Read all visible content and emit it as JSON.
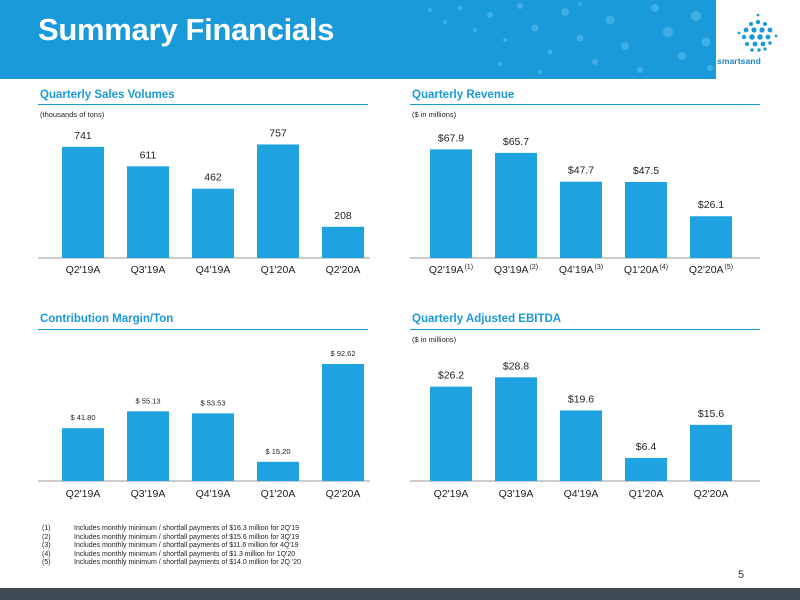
{
  "title": "Summary Financials",
  "logo": {
    "text": "smartsand"
  },
  "colors": {
    "accent": "#1a9ad9",
    "bar": "#1ea3e0"
  },
  "chart_data": [
    {
      "id": "sales",
      "type": "bar",
      "title": "Quarterly Sales Volumes",
      "unit_label": "(thousands of tons)",
      "categories": [
        "Q2'19A",
        "Q3'19A",
        "Q4'19A",
        "Q1'20A",
        "Q2'20A"
      ],
      "category_sup": [
        "",
        "",
        "",
        "",
        ""
      ],
      "values": [
        741,
        611,
        462,
        757,
        208
      ],
      "labels": [
        "741",
        "611",
        "462",
        "757",
        "208"
      ]
    },
    {
      "id": "revenue",
      "type": "bar",
      "title": "Quarterly Revenue",
      "unit_label": "($ in millions)",
      "categories": [
        "Q2'19A",
        "Q3'19A",
        "Q4'19A",
        "Q1'20A",
        "Q2'20A"
      ],
      "category_sup": [
        "(1)",
        "(2)",
        "(3)",
        "(4)",
        "(5)"
      ],
      "values": [
        67.9,
        65.7,
        47.7,
        47.5,
        26.1
      ],
      "labels": [
        "$67.9",
        "$65.7",
        "$47.7",
        "$47.5",
        "$26.1"
      ]
    },
    {
      "id": "margin",
      "type": "bar",
      "title": "Contribution Margin/Ton",
      "unit_label": "",
      "categories": [
        "Q2'19A",
        "Q3'19A",
        "Q4'19A",
        "Q1'20A",
        "Q2'20A"
      ],
      "category_sup": [
        "",
        "",
        "",
        "",
        ""
      ],
      "values": [
        41.8,
        55.13,
        53.53,
        15.2,
        92.62
      ],
      "labels": [
        "$ 41.80",
        "$ 55.13",
        "$ 53.53",
        "$ 15.20",
        "$ 92.62"
      ]
    },
    {
      "id": "ebitda",
      "type": "bar",
      "title": "Quarterly Adjusted EBITDA",
      "unit_label": "($ in millions)",
      "categories": [
        "Q2'19A",
        "Q3'19A",
        "Q4'19A",
        "Q1'20A",
        "Q2'20A"
      ],
      "category_sup": [
        "",
        "",
        "",
        "",
        ""
      ],
      "values": [
        26.2,
        28.8,
        19.6,
        6.4,
        15.6
      ],
      "labels": [
        "$26.2",
        "$28.8",
        "$19.6",
        "$6.4",
        "$15.6"
      ]
    }
  ],
  "footnotes": [
    {
      "num": "(1)",
      "text": "Includes monthly minimum / shortfall payments of $16.3 million for 2Q'19"
    },
    {
      "num": "(2)",
      "text": "Includes monthly minimum / shortfall payments of $15.6 million for 3Q'19"
    },
    {
      "num": "(3)",
      "text": "Includes monthly minimum / shortfall payments of $11.6 million for 4Q'19"
    },
    {
      "num": "(4)",
      "text": "Includes monthly minimum / shortfall payments of $1.3  million for 1Q'20"
    },
    {
      "num": "(5)",
      "text": "Includes monthly minimum / shortfall payments of $14.0 million for 2Q '20"
    }
  ],
  "page_number": "5"
}
